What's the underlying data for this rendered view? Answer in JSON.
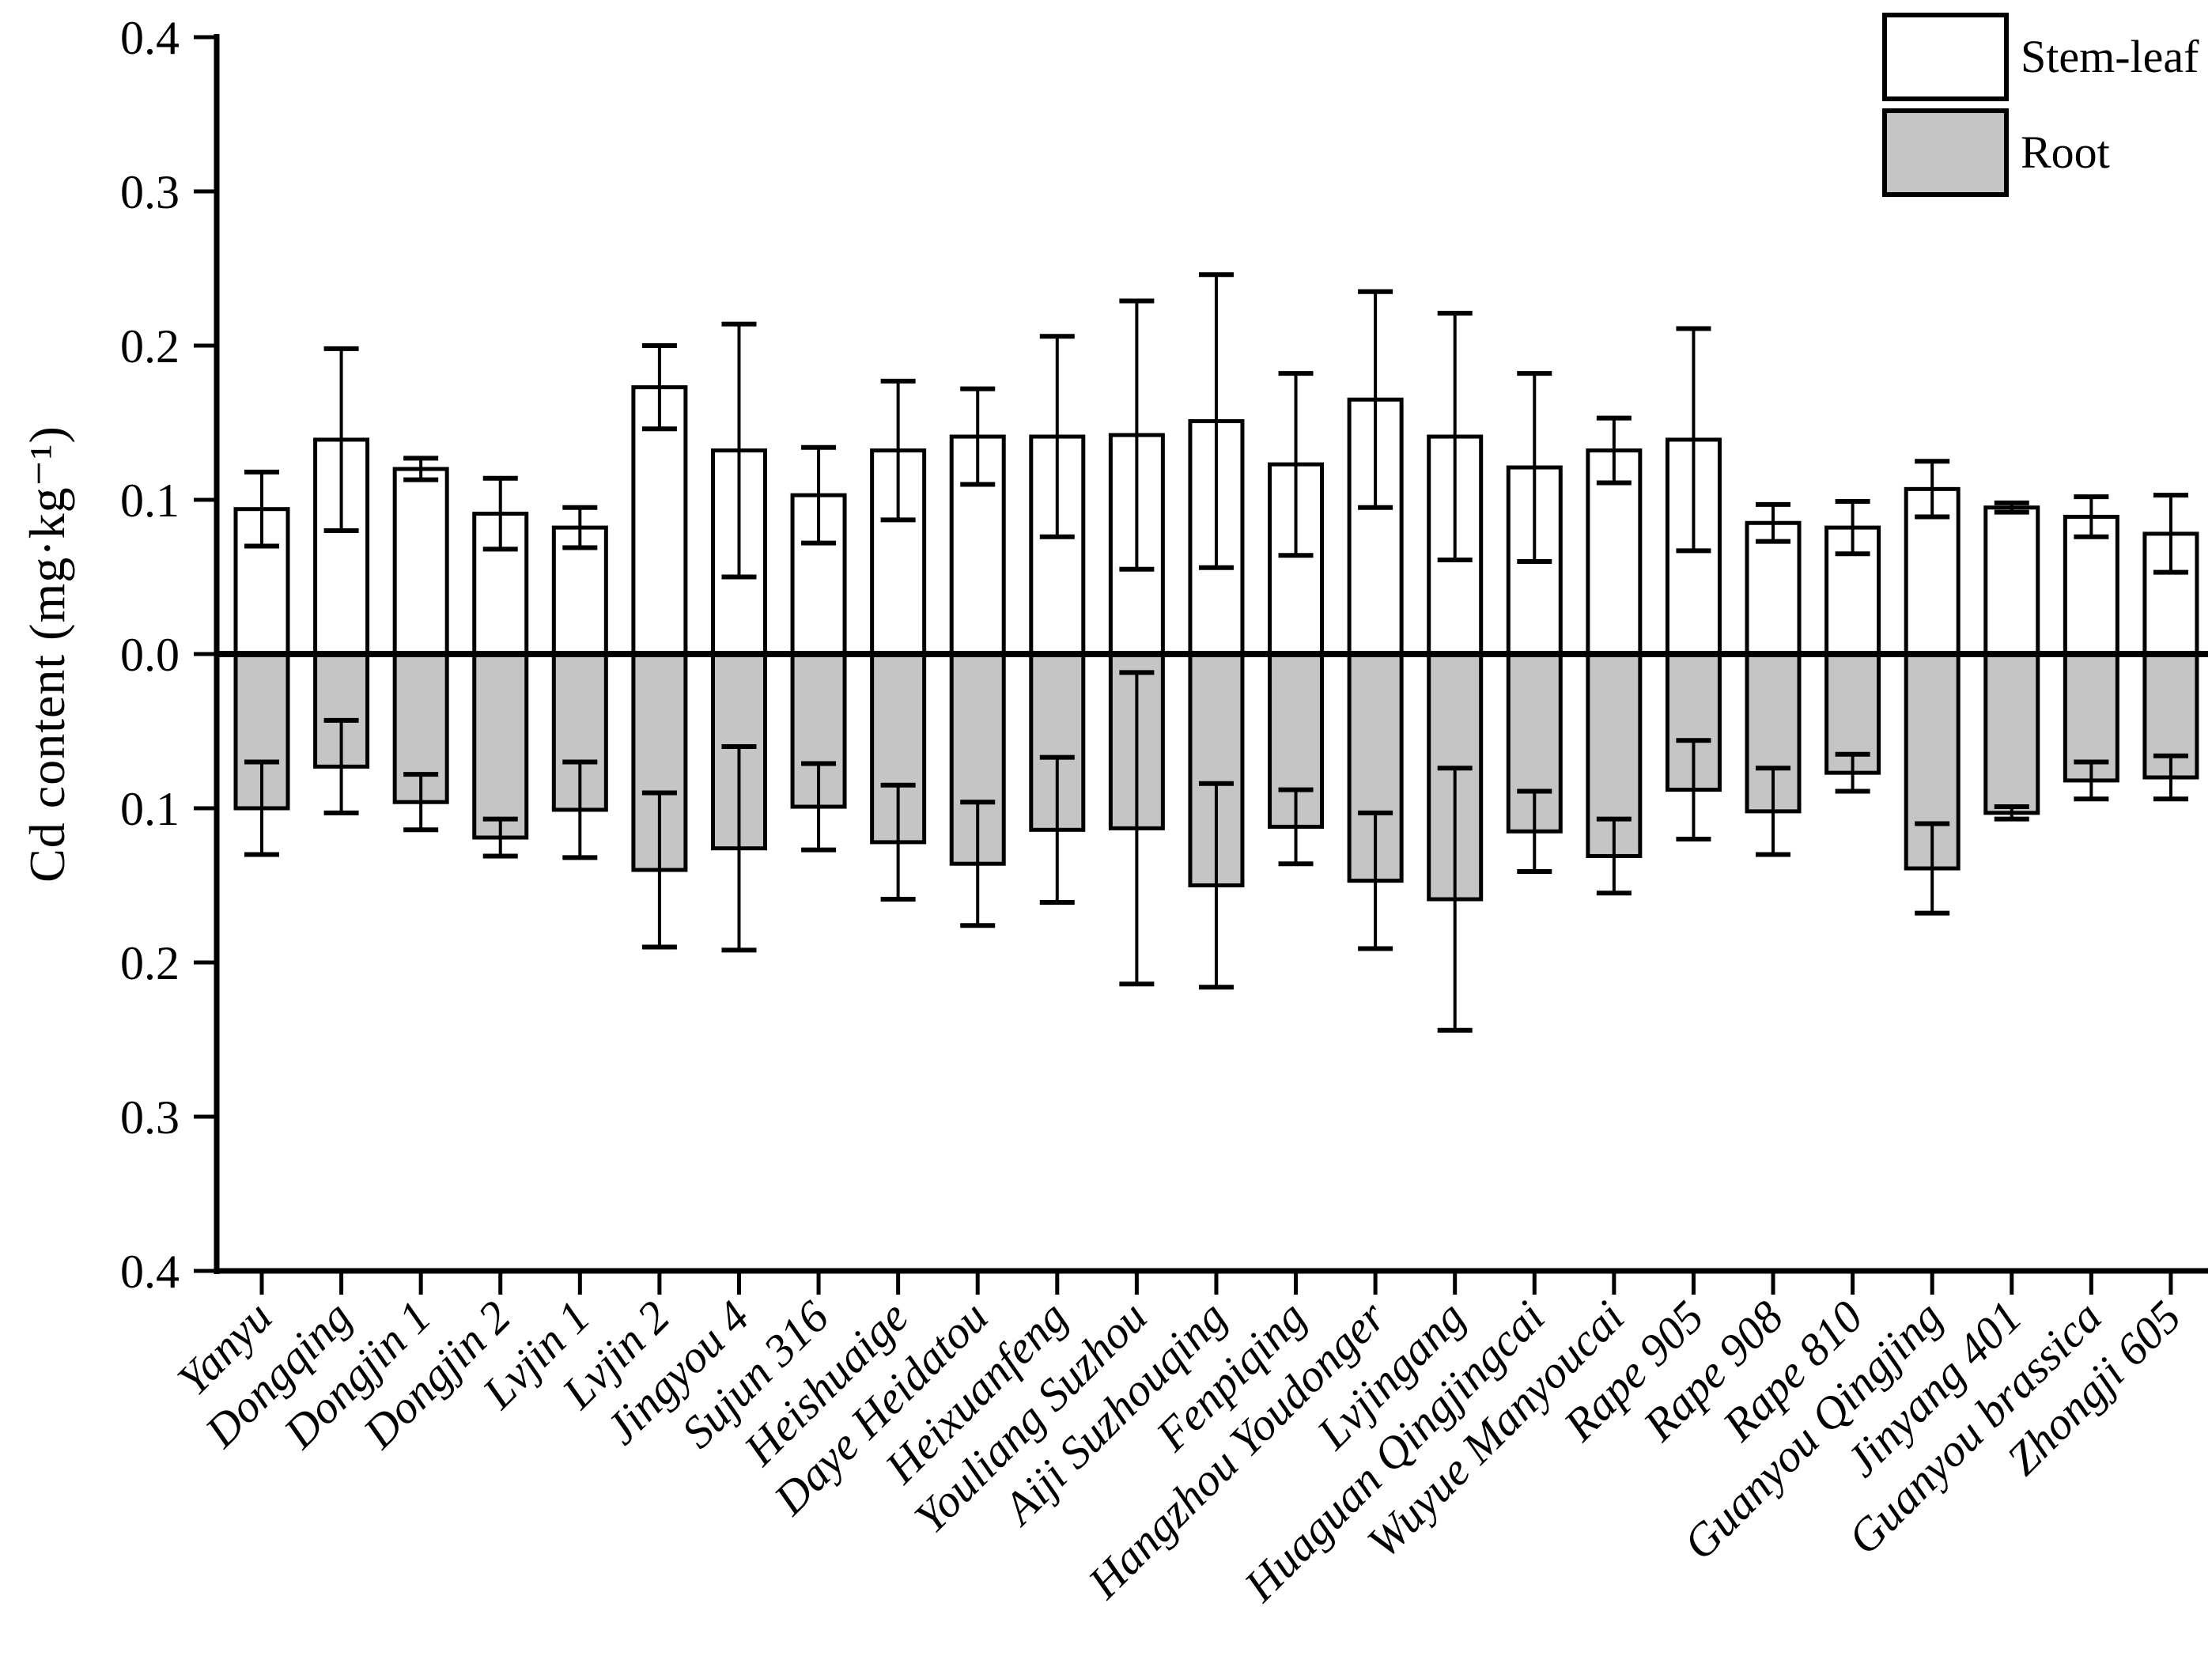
{
  "figure": {
    "background": "#ffffff",
    "axis_color": "#000000"
  },
  "y_axis": {
    "title": "Cd content (mg·kg⁻¹)"
  },
  "chart_data": {
    "type": "bar",
    "title": "",
    "xlabel": "",
    "ylabel": "Cd content (mg·kg⁻¹)",
    "ylim": [
      -0.4,
      0.4
    ],
    "grid": false,
    "legend_position": "top-right",
    "error_bars": true,
    "y_ticks": [
      {
        "value": 0.4,
        "label": "0.4"
      },
      {
        "value": 0.3,
        "label": "0.3"
      },
      {
        "value": 0.2,
        "label": "0.2"
      },
      {
        "value": 0.1,
        "label": "0.1"
      },
      {
        "value": 0.0,
        "label": "0.0"
      },
      {
        "value": -0.1,
        "label": "0.1"
      },
      {
        "value": -0.2,
        "label": "0.2"
      },
      {
        "value": -0.3,
        "label": "0.3"
      },
      {
        "value": -0.4,
        "label": "0.4"
      }
    ],
    "categories": [
      "Yanyu",
      "Dongqing",
      "Dongjin 1",
      "Dongjin 2",
      "Lvjin 1",
      "Lvjin 2",
      "Jingyou 4",
      "Sujun 316",
      "Heishuaige",
      "Daye Heidatou",
      "Heixuanfeng",
      "Youliang Suzhou",
      "Aiji Suzhouqing",
      "Fenpiqing",
      "Hangzhou Youdonger",
      "Lvjingang",
      "Huaguan Qingjingcai",
      "Wuyue Manyoucai",
      "Rape 905",
      "Rape 908",
      "Rape 810",
      "Guanyou Qingjing",
      "Jinyang 401",
      "Guanyou brassica",
      "Zhongji 605"
    ],
    "series": [
      {
        "name": "Stem-leaf",
        "fill": "#ffffff",
        "stroke": "#000000",
        "values": [
          0.094,
          0.139,
          0.12,
          0.091,
          0.082,
          0.173,
          0.132,
          0.103,
          0.132,
          0.141,
          0.141,
          0.142,
          0.151,
          0.123,
          0.165,
          0.141,
          0.121,
          0.132,
          0.139,
          0.085,
          0.082,
          0.107,
          0.095,
          0.089,
          0.078
        ],
        "errors": [
          0.024,
          0.059,
          0.007,
          0.023,
          0.013,
          0.027,
          0.082,
          0.031,
          0.045,
          0.031,
          0.065,
          0.087,
          0.095,
          0.059,
          0.07,
          0.08,
          0.061,
          0.021,
          0.072,
          0.012,
          0.017,
          0.018,
          0.003,
          0.013,
          0.025
        ]
      },
      {
        "name": "Root",
        "fill": "#c5c5c5",
        "stroke": "#000000",
        "values": [
          -0.1,
          -0.073,
          -0.096,
          -0.119,
          -0.101,
          -0.14,
          -0.126,
          -0.099,
          -0.122,
          -0.136,
          -0.114,
          -0.113,
          -0.15,
          -0.112,
          -0.147,
          -0.159,
          -0.115,
          -0.131,
          -0.088,
          -0.102,
          -0.077,
          -0.139,
          -0.103,
          -0.082,
          -0.08
        ],
        "errors": [
          0.03,
          0.03,
          0.018,
          0.012,
          0.031,
          0.05,
          0.066,
          0.028,
          0.037,
          0.04,
          0.047,
          0.101,
          0.066,
          0.024,
          0.044,
          0.085,
          0.026,
          0.024,
          0.032,
          0.028,
          0.012,
          0.029,
          0.004,
          0.012,
          0.014
        ]
      }
    ]
  }
}
